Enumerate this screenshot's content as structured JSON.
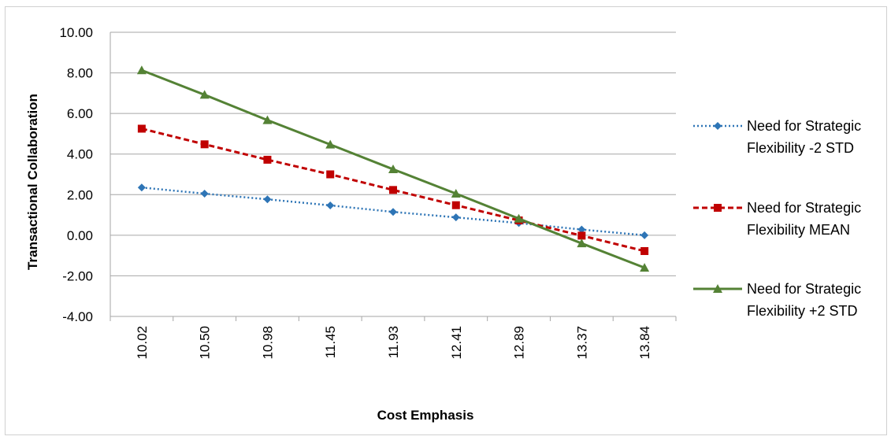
{
  "chart_data": {
    "type": "line",
    "xlabel": "Cost Emphasis",
    "ylabel": "Transactional Collaboration",
    "categories": [
      "10.02",
      "10.50",
      "10.98",
      "11.45",
      "11.93",
      "12.41",
      "12.89",
      "13.37",
      "13.84"
    ],
    "y_ticks": [
      "10.00",
      "8.00",
      "6.00",
      "4.00",
      "2.00",
      "0.00",
      "-2.00",
      "-4.00"
    ],
    "ylim": [
      -4,
      10
    ],
    "grid": "horizontal",
    "legend_position": "right",
    "series": [
      {
        "name_lines": [
          "Need for Strategic",
          "Flexibility -2 STD"
        ],
        "color": "#2E75B6",
        "line_style": "dotted",
        "marker": "diamond",
        "values": [
          2.35,
          2.05,
          1.77,
          1.47,
          1.15,
          0.88,
          0.6,
          0.28,
          0.0
        ]
      },
      {
        "name_lines": [
          "Need for Strategic",
          "Flexibility MEAN"
        ],
        "color": "#C00000",
        "line_style": "dashed",
        "marker": "square",
        "values": [
          5.25,
          4.48,
          3.72,
          3.0,
          2.23,
          1.48,
          0.73,
          -0.02,
          -0.78
        ]
      },
      {
        "name_lines": [
          "Need for Strategic",
          "Flexibility +2 STD"
        ],
        "color": "#548235",
        "line_style": "solid",
        "marker": "triangle",
        "values": [
          8.13,
          6.92,
          5.67,
          4.47,
          3.25,
          2.05,
          0.82,
          -0.4,
          -1.6
        ]
      }
    ]
  }
}
